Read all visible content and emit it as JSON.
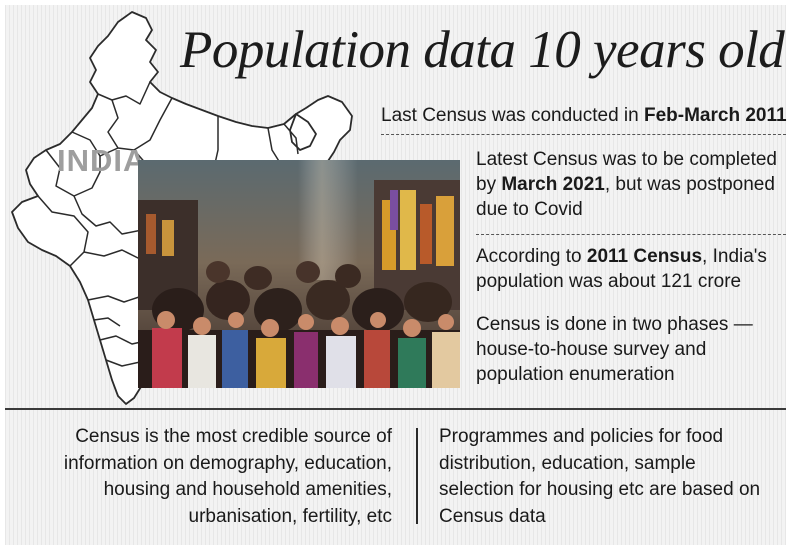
{
  "title": "Population data 10 years old",
  "map": {
    "label": "INDIA",
    "icon": "india-map-outline"
  },
  "photo": {
    "icon": "crowd-photo"
  },
  "facts": [
    {
      "pre": "Last Census was conducted in ",
      "bold": "Feb-March 2011",
      "post": ""
    },
    {
      "pre": "Latest Census was to be completed by ",
      "bold": "March 2021",
      "post": ", but was postponed due to Covid"
    },
    {
      "pre": "According to ",
      "bold": "2011 Census",
      "post": ", India's population was about 121 crore"
    },
    {
      "pre": "",
      "bold": "",
      "post": "Census is done in two phases — house-to-house survey and population enumeration"
    }
  ],
  "bottom": {
    "left_lines": [
      "Census is the most credible source of",
      "information on demography, education,",
      "housing and household amenities,",
      "urbanisation, fertility, etc"
    ],
    "right_lines": [
      "Programmes and policies for food",
      "distribution, education, sample",
      "selection for housing etc are based on",
      "Census data"
    ]
  },
  "colors": {
    "background": "#f3f3f3",
    "text": "#1a1a1a",
    "map_label": "#9e9e9e",
    "map_stroke": "#2b2b2b"
  }
}
